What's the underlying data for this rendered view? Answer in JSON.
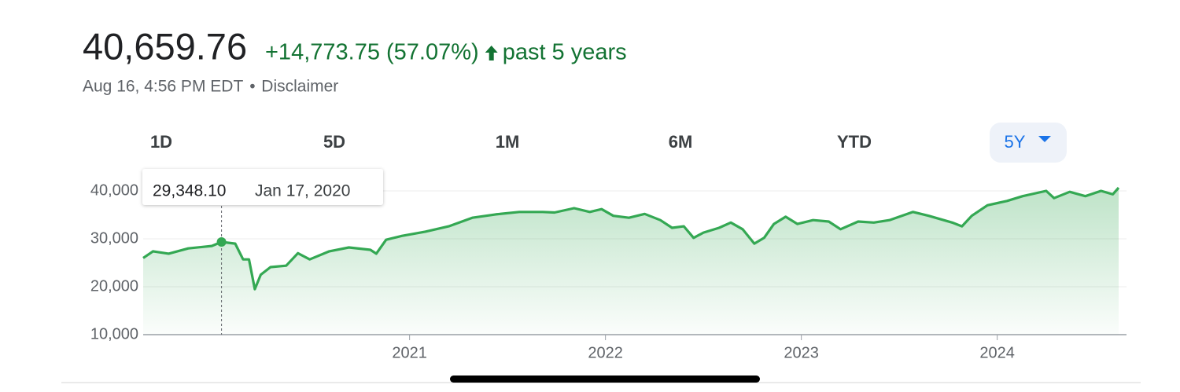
{
  "header": {
    "price": "40,659.76",
    "change": "+14,773.75 (57.07%)",
    "period": "past 5 years",
    "timestamp": "Aug 16, 4:56 PM EDT",
    "separator": "•",
    "disclaimer": "Disclaimer"
  },
  "tabs": [
    "1D",
    "5D",
    "1M",
    "6M",
    "YTD",
    "5Y"
  ],
  "chart_data": {
    "type": "line",
    "color": "#34a853",
    "x": [
      2019.64,
      2019.69,
      2019.77,
      2019.87,
      2019.99,
      2020.04,
      2020.11,
      2020.15,
      2020.18,
      2020.21,
      2020.24,
      2020.29,
      2020.37,
      2020.43,
      2020.49,
      2020.59,
      2020.69,
      2020.8,
      2020.83,
      2020.88,
      2020.96,
      2021.08,
      2021.2,
      2021.32,
      2021.44,
      2021.56,
      2021.68,
      2021.74,
      2021.84,
      2021.92,
      2021.98,
      2022.04,
      2022.12,
      2022.2,
      2022.28,
      2022.34,
      2022.4,
      2022.45,
      2022.5,
      2022.58,
      2022.64,
      2022.7,
      2022.76,
      2022.81,
      2022.86,
      2022.92,
      2022.98,
      2023.06,
      2023.14,
      2023.2,
      2023.29,
      2023.37,
      2023.45,
      2023.57,
      2023.65,
      2023.77,
      2023.82,
      2023.87,
      2023.95,
      2024.05,
      2024.13,
      2024.25,
      2024.29,
      2024.37,
      2024.45,
      2024.53,
      2024.59,
      2024.62
    ],
    "values": [
      26000,
      27400,
      26900,
      28000,
      28500,
      29348.1,
      29000,
      25700,
      25700,
      19500,
      22500,
      24100,
      24400,
      27000,
      25700,
      27400,
      28200,
      27700,
      26900,
      29800,
      30600,
      31500,
      32600,
      34400,
      35100,
      35600,
      35600,
      35500,
      36400,
      35600,
      36200,
      34800,
      34400,
      35200,
      33900,
      32300,
      32600,
      30200,
      31300,
      32300,
      33400,
      32000,
      29000,
      30200,
      33100,
      34600,
      33100,
      33900,
      33600,
      32000,
      33600,
      33400,
      33900,
      35600,
      34800,
      33400,
      32600,
      34800,
      37000,
      37900,
      38900,
      40000,
      38500,
      39800,
      38900,
      40000,
      39300,
      40659.76
    ],
    "xlim": [
      2019.64,
      2024.66
    ],
    "xticks": [
      2021,
      2022,
      2023,
      2024
    ],
    "ylim": [
      10000,
      42000
    ],
    "yticks": [
      {
        "value": 10000,
        "label": "10,000"
      },
      {
        "value": 20000,
        "label": "20,000"
      },
      {
        "value": 30000,
        "label": "30,000"
      },
      {
        "value": 40000,
        "label": "40,000"
      }
    ],
    "grid": true,
    "tooltip": {
      "x": 2020.04,
      "value": 29348.1,
      "value_label": "29,348.10",
      "date": "Jan 17, 2020"
    }
  }
}
